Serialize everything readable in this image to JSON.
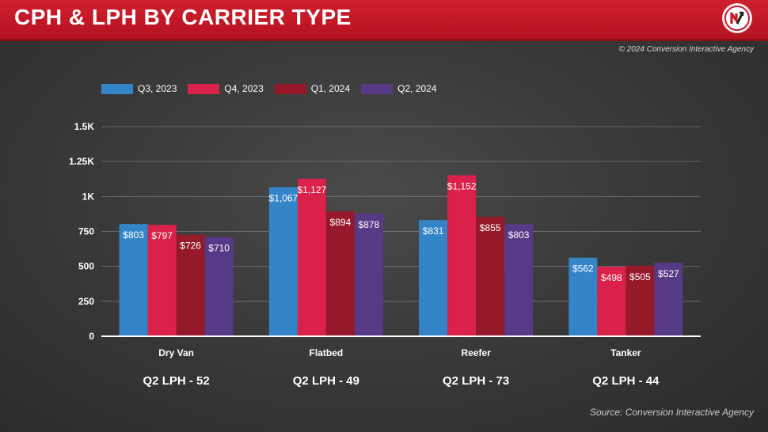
{
  "header": {
    "title": "CPH & LPH BY CARRIER TYPE",
    "logo_icon": "carrier-logo-icon"
  },
  "copyright": "© 2024 Conversion Interactive Agency",
  "source": "Source: Conversion Interactive Agency",
  "colors": {
    "header_red": "#c8192a",
    "q3_2023": "#3484c8",
    "q4_2023": "#d9214a",
    "q1_2024": "#96192a",
    "q2_2024": "#563a86"
  },
  "chart_data": {
    "type": "bar",
    "title": "",
    "xlabel": "",
    "ylabel": "",
    "ylim": [
      0,
      1500
    ],
    "yticks": [
      0,
      250,
      500,
      750,
      1000,
      1250,
      1500
    ],
    "ytick_labels": [
      "0",
      "250",
      "500",
      "750",
      "1K",
      "1.25K",
      "1.5K"
    ],
    "grid": true,
    "legend_position": "top-left",
    "categories": [
      "Dry Van",
      "Flatbed",
      "Reefer",
      "Tanker"
    ],
    "series": [
      {
        "name": "Q3, 2023",
        "color": "#3484c8",
        "values": [
          803,
          1067,
          831,
          562
        ],
        "labels": [
          "$803",
          "$1,067",
          "$831",
          "$562"
        ]
      },
      {
        "name": "Q4, 2023",
        "color": "#d9214a",
        "values": [
          797,
          1127,
          1152,
          498
        ],
        "labels": [
          "$797",
          "$1,127",
          "$1,152",
          "$498"
        ]
      },
      {
        "name": "Q1, 2024",
        "color": "#96192a",
        "values": [
          726,
          894,
          855,
          505
        ],
        "labels": [
          "$726",
          "$894",
          "$855",
          "$505"
        ]
      },
      {
        "name": "Q2, 2024",
        "color": "#563a86",
        "values": [
          710,
          878,
          803,
          527
        ],
        "labels": [
          "$710",
          "$878",
          "$803",
          "$527"
        ]
      }
    ],
    "annotations": [
      "Q2 LPH - 52",
      "Q2 LPH - 49",
      "Q2 LPH - 73",
      "Q2 LPH - 44"
    ]
  }
}
